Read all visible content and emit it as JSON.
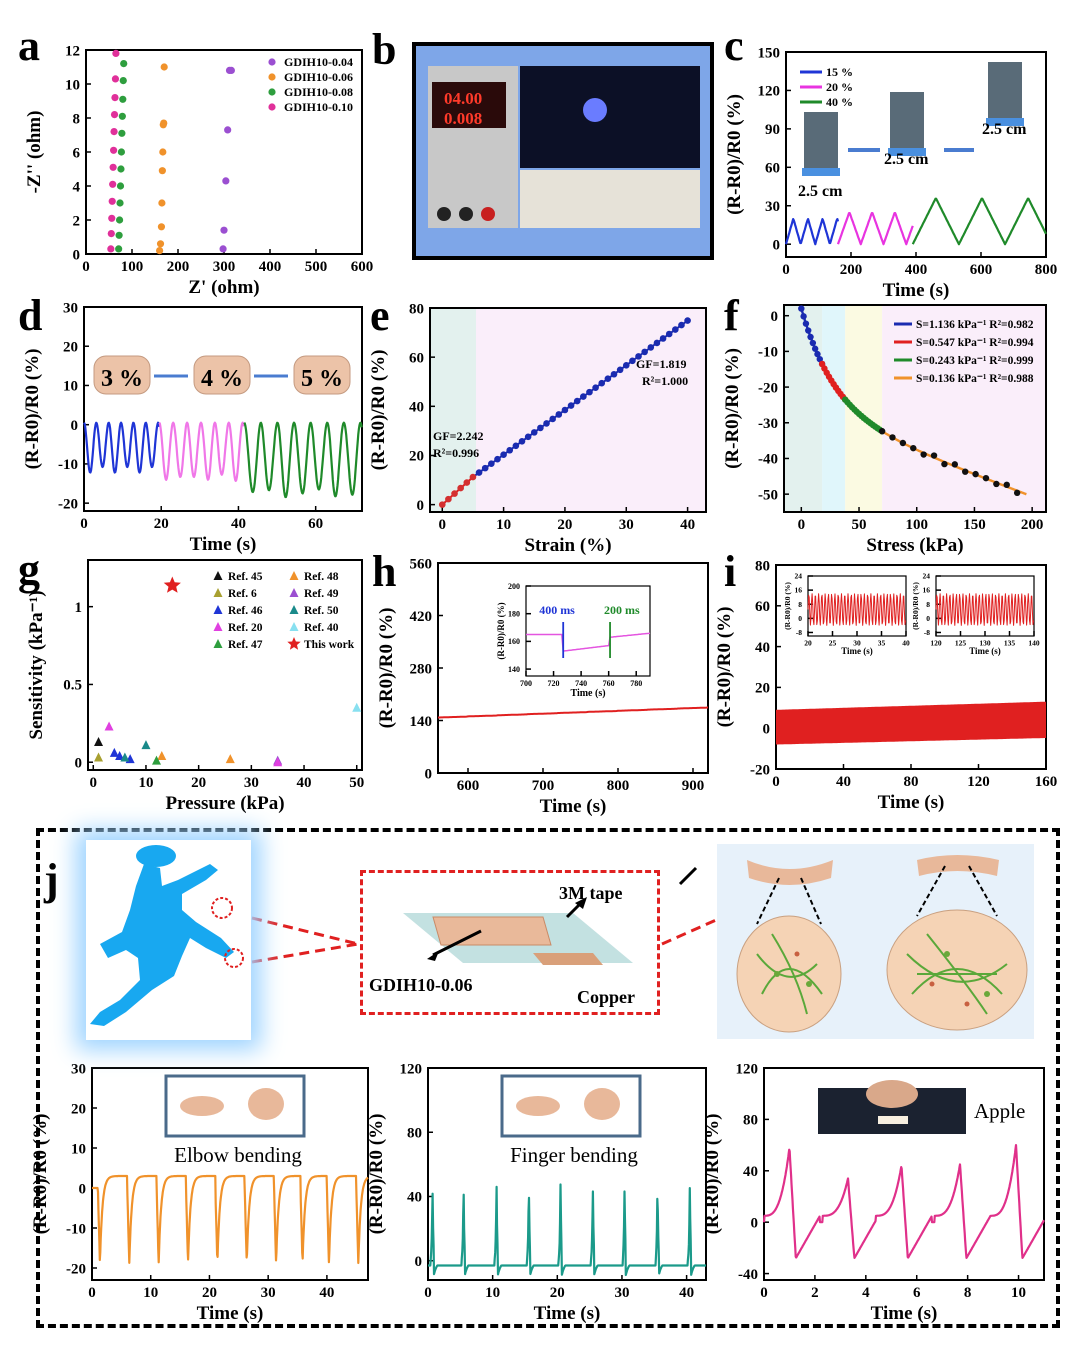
{
  "panels": {
    "a": {
      "label": "a",
      "type": "scatter",
      "xlabel": "Z' (ohm)",
      "ylabel": "-Z'' (ohm)",
      "xlim": [
        0,
        600
      ],
      "ylim": [
        0,
        12
      ],
      "xticks": [
        0,
        100,
        200,
        300,
        400,
        500,
        600
      ],
      "yticks": [
        0,
        2,
        4,
        6,
        8,
        10,
        12
      ],
      "legend_position": "top-right",
      "series": [
        {
          "name": "GDIH10-0.04",
          "color": "#9b4fd1",
          "x": [
            298,
            300,
            304,
            308,
            312,
            316
          ],
          "y": [
            0.3,
            1.4,
            4.3,
            7.3,
            10.8,
            10.8
          ]
        },
        {
          "name": "GDIH10-0.06",
          "color": "#f0922b",
          "x": [
            160,
            162,
            164,
            165,
            166,
            167,
            168,
            169,
            170
          ],
          "y": [
            0.2,
            0.6,
            1.6,
            3.0,
            4.9,
            6.0,
            7.6,
            7.7,
            11.0
          ]
        },
        {
          "name": "GDIH10-0.08",
          "color": "#2e9e3e",
          "x": [
            71,
            72,
            73,
            74,
            75,
            76,
            77,
            78,
            79,
            80,
            81,
            82
          ],
          "y": [
            0.3,
            1.1,
            2.0,
            3.0,
            4.0,
            5.0,
            6.0,
            7.1,
            8.1,
            9.1,
            10.2,
            11.2
          ]
        },
        {
          "name": "GDIH10-0.10",
          "color": "#e0309a",
          "x": [
            54,
            55,
            56,
            57,
            58,
            59,
            60,
            61,
            62,
            63,
            64,
            65
          ],
          "y": [
            0.3,
            1.2,
            2.1,
            3.1,
            4.1,
            5.1,
            6.1,
            7.2,
            8.2,
            9.2,
            10.3,
            11.8
          ]
        }
      ]
    },
    "b": {
      "label": "b"
    },
    "c": {
      "label": "c",
      "type": "line",
      "xlabel": "Time (s)",
      "ylabel": "(R-R0)/R0 (%)",
      "xlim": [
        0,
        800
      ],
      "ylim": [
        -10,
        150
      ],
      "xticks": [
        0,
        200,
        400,
        600,
        800
      ],
      "yticks": [
        0,
        30,
        60,
        90,
        120,
        150
      ],
      "series": [
        {
          "name": "15 %",
          "color": "#1f35d6",
          "start": 0,
          "end": 160,
          "period": 45,
          "amp": 20
        },
        {
          "name": "20 %",
          "color": "#e834e0",
          "start": 160,
          "end": 390,
          "period": 70,
          "amp": 25
        },
        {
          "name": "40 %",
          "color": "#1f8a2a",
          "start": 390,
          "end": 800,
          "period": 142,
          "amp": 36
        }
      ],
      "scale_labels": [
        "2.5 cm",
        "2.5 cm",
        "2.5 cm"
      ]
    },
    "d": {
      "label": "d",
      "type": "line",
      "xlabel": "Time (s)",
      "ylabel": "(R-R0)/R0 (%)",
      "xlim": [
        0,
        72
      ],
      "ylim": [
        -22,
        30
      ],
      "xticks": [
        0,
        20,
        40,
        60
      ],
      "yticks": [
        -20,
        -10,
        0,
        10,
        20,
        30
      ],
      "series": [
        {
          "name": "3 %",
          "color": "#1f35d6",
          "start": 0,
          "end": 19.5,
          "period": 3.2,
          "low": -12
        },
        {
          "name": "4 %",
          "color": "#f077e8",
          "start": 19.5,
          "end": 41.5,
          "period": 3.6,
          "low": -14
        },
        {
          "name": "5 %",
          "color": "#1f8a2a",
          "start": 41.5,
          "end": 72,
          "period": 4.3,
          "low": -18
        }
      ],
      "steps": [
        "3 %",
        "4 %",
        "5 %"
      ]
    },
    "e": {
      "label": "e",
      "type": "scatter",
      "xlabel": "Strain (%)",
      "ylabel": "(R-R0)/R0 (%)",
      "xlim": [
        -2,
        43
      ],
      "ylim": [
        -3,
        80
      ],
      "xticks": [
        0,
        10,
        20,
        30,
        40
      ],
      "yticks": [
        0,
        20,
        40,
        60,
        80
      ],
      "fits": [
        {
          "range": [
            0,
            5
          ],
          "gf": 2.242,
          "r2": 0.996,
          "color": "#e02020",
          "point_color": "#d43030"
        },
        {
          "range": [
            5,
            40
          ],
          "gf": 1.819,
          "r2": 1.0,
          "color": "#1a2bb0",
          "point_color": "#1a2bb0"
        }
      ],
      "annotations": [
        "GF=2.242",
        "R²=0.996",
        "GF=1.819",
        "R²=1.000"
      ]
    },
    "f": {
      "label": "f",
      "type": "scatter",
      "xlabel": "Stress (kPa)",
      "ylabel": "(R-R0)/R0 (%)",
      "xlim": [
        -15,
        212
      ],
      "ylim": [
        -55,
        3
      ],
      "xticks": [
        0,
        50,
        100,
        150,
        200
      ],
      "yticks": [
        -50,
        -40,
        -30,
        -20,
        -10,
        0
      ],
      "legend_position": "top-right",
      "series": [
        {
          "name": "S=1.136 kPa⁻¹ R²=0.982",
          "color": "#1a2bb0",
          "range": [
            0,
            18
          ]
        },
        {
          "name": "S=0.547 kPa⁻¹ R²=0.994",
          "color": "#e02020",
          "range": [
            18,
            38
          ]
        },
        {
          "name": "S=0.243 kPa⁻¹ R²=0.999",
          "color": "#1f8a2a",
          "range": [
            38,
            70
          ]
        },
        {
          "name": "S=0.136 kPa⁻¹ R²=0.988",
          "color": "#f0922b",
          "range": [
            70,
            195
          ]
        }
      ]
    },
    "g": {
      "label": "g",
      "type": "scatter",
      "xlabel": "Pressure (kPa)",
      "ylabel": "Sensitivity (kPa⁻¹)",
      "xlim": [
        -1,
        51
      ],
      "ylim": [
        -0.05,
        1.3
      ],
      "xticks": [
        0,
        10,
        20,
        30,
        40,
        50
      ],
      "yticks": [
        0.0,
        0.5,
        1.0
      ],
      "legend_position": "top-right",
      "series": [
        {
          "name": "Ref. 45",
          "color": "#111111",
          "points": [
            [
              1,
              0.13
            ]
          ]
        },
        {
          "name": "Ref. 48",
          "color": "#f0922b",
          "points": [
            [
              26,
              0.02
            ],
            [
              13,
              0.04
            ]
          ]
        },
        {
          "name": "Ref. 6",
          "color": "#a8a030",
          "points": [
            [
              1,
              0.03
            ]
          ]
        },
        {
          "name": "Ref. 49",
          "color": "#9b4fd1",
          "points": [
            [
              35,
              0.01
            ]
          ]
        },
        {
          "name": "Ref. 46",
          "color": "#1f35d6",
          "points": [
            [
              5,
              0.04
            ],
            [
              7,
              0.02
            ],
            [
              4,
              0.06
            ]
          ]
        },
        {
          "name": "Ref. 50",
          "color": "#1a8a8a",
          "points": [
            [
              10,
              0.11
            ],
            [
              6,
              0.03
            ]
          ]
        },
        {
          "name": "Ref. 20",
          "color": "#e040e0",
          "points": [
            [
              3,
              0.23
            ],
            [
              35,
              0.0
            ]
          ]
        },
        {
          "name": "Ref. 40",
          "color": "#88e0f0",
          "points": [
            [
              50,
              0.35
            ]
          ]
        },
        {
          "name": "Ref. 47",
          "color": "#2e9e3e",
          "points": [
            [
              12,
              0.01
            ]
          ]
        },
        {
          "name": "This work",
          "color": "#e02020",
          "marker": "star",
          "points": [
            [
              15,
              1.136
            ]
          ]
        }
      ]
    },
    "h": {
      "label": "h",
      "type": "line",
      "xlabel": "Time (s)",
      "ylabel": "(R-R0)/R0 (%)",
      "xlim": [
        560,
        920
      ],
      "ylim": [
        0,
        560
      ],
      "xticks": [
        600,
        700,
        800,
        900
      ],
      "yticks": [
        0,
        140,
        280,
        420,
        560
      ],
      "color": "#e02020",
      "start_value": 148,
      "end_value": 172,
      "inset": {
        "xlim": [
          700,
          790
        ],
        "ylim": [
          135,
          200
        ],
        "xticks": [
          700,
          720,
          740,
          760,
          780
        ],
        "yticks": [
          140,
          160,
          180,
          200
        ],
        "xlabel": "Time (s)",
        "ylabel": "(R-R0)/R0 (%)",
        "markers": [
          {
            "label": "400 ms",
            "color": "#1f35d6",
            "x": 727
          },
          {
            "label": "200 ms",
            "color": "#1f8a2a",
            "x": 761
          }
        ]
      }
    },
    "i": {
      "label": "i",
      "type": "line",
      "xlabel": "Time (s)",
      "ylabel": "(R-R0)/R0 (%)",
      "xlim": [
        0,
        160
      ],
      "ylim": [
        -20,
        80
      ],
      "xticks": [
        0,
        40,
        80,
        120,
        160
      ],
      "yticks": [
        -20,
        0,
        20,
        40,
        60,
        80
      ],
      "color": "#e02020",
      "insets": [
        {
          "xlim": [
            20,
            40
          ],
          "ylim": [
            -10,
            24
          ],
          "xticks": [
            20,
            25,
            30,
            35,
            40
          ],
          "yticks": [
            -8,
            0,
            8,
            16,
            24
          ],
          "xlabel": "Time (s)",
          "ylabel": "(R-R0)/R0 (%)"
        },
        {
          "xlim": [
            120,
            140
          ],
          "ylim": [
            -10,
            24
          ],
          "xticks": [
            120,
            125,
            130,
            135,
            140
          ],
          "yticks": [
            -8,
            0,
            8,
            16,
            24
          ],
          "xlabel": "Time (s)",
          "ylabel": "(R-R0)/R0 (%)"
        }
      ]
    },
    "j": {
      "label": "j",
      "schematic": {
        "sample": "GDIH10-0.06",
        "tape": "3M tape",
        "electrode": "Copper"
      },
      "plots": [
        {
          "name": "Elbow bending",
          "color": "#f0922b",
          "xlim": [
            0,
            47
          ],
          "ylim": [
            -23,
            30
          ],
          "xticks": [
            0,
            10,
            20,
            30,
            40
          ],
          "yticks": [
            -20,
            -10,
            0,
            10,
            20,
            30
          ],
          "xlabel": "Time (s)",
          "ylabel": "(R-R0)/R0 (%)",
          "peaks_at": [
            1,
            6,
            11,
            16,
            21,
            26,
            31,
            35.5,
            40,
            45
          ],
          "high": 3,
          "low": -19
        },
        {
          "name": "Finger bending",
          "color": "#1b9a8a",
          "xlim": [
            0,
            43
          ],
          "ylim": [
            -12,
            120
          ],
          "xticks": [
            0,
            10,
            20,
            30,
            40
          ],
          "yticks": [
            0,
            40,
            80,
            120
          ],
          "xlabel": "Time (s)",
          "ylabel": "(R-R0)/R0 (%)",
          "peaks_at": [
            0.7,
            5.5,
            10.6,
            15.6,
            20.5,
            25.5,
            30.4,
            35.5,
            40.5
          ],
          "high": 52,
          "low": -4
        },
        {
          "name": "Apple",
          "color": "#e0308a",
          "xlim": [
            0,
            11
          ],
          "ylim": [
            -45,
            120
          ],
          "xticks": [
            0,
            2,
            4,
            6,
            8,
            10
          ],
          "yticks": [
            -40,
            0,
            40,
            80,
            120
          ],
          "xlabel": "Time (s)",
          "ylabel": "(R-R0)/R0 (%)",
          "peaks_at": [
            1.0,
            3.3,
            5.4,
            7.7,
            9.9
          ],
          "peak_values": [
            58,
            34,
            44,
            45,
            60
          ],
          "low": -28
        }
      ]
    }
  },
  "colors": {
    "bg_b": "#4f8fe4",
    "frame": "#000000"
  }
}
